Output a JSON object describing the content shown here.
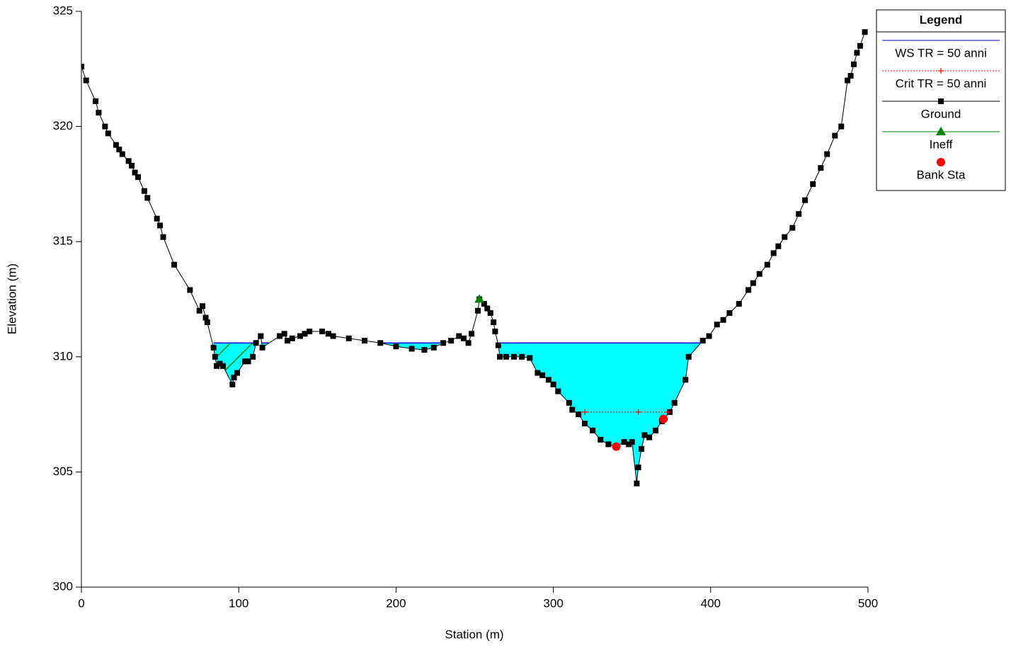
{
  "chart_data": {
    "type": "cross-section",
    "x_label": "Station (m)",
    "y_label": "Elevation (m)",
    "xlim": [
      0,
      500
    ],
    "xticks": [
      0,
      100,
      200,
      300,
      400,
      500
    ],
    "ylim": [
      300,
      325
    ],
    "yticks": [
      300,
      305,
      310,
      315,
      320,
      325
    ],
    "legend_title": "Legend",
    "legend_position": "top-right",
    "series": [
      {
        "name": "WS TR = 50 anni",
        "color": "#0000ff",
        "kind": "water",
        "fill": "#00ffff",
        "x": [
          84,
          396
        ],
        "values": [
          310.6,
          310.6
        ]
      },
      {
        "name": "Crit TR = 50 anni",
        "color": "#ff0000",
        "kind": "crit",
        "x": [
          320,
          354,
          373
        ],
        "values": [
          307.6,
          307.6,
          307.6
        ]
      },
      {
        "name": "Ground",
        "color": "#000000",
        "kind": "ground",
        "x": [
          0,
          3,
          9,
          11,
          15,
          17,
          22,
          24,
          26,
          30,
          32,
          34,
          36,
          40,
          42,
          48,
          50,
          52,
          59,
          69,
          75,
          77,
          79,
          80,
          84,
          85,
          86,
          88,
          90,
          96,
          97,
          99,
          104,
          106,
          109,
          111,
          114,
          115,
          126,
          129,
          131,
          134,
          139,
          142,
          145,
          153,
          157,
          160,
          170,
          180,
          190,
          200,
          210,
          218,
          224,
          230,
          235,
          240,
          243,
          246,
          248,
          252,
          253,
          256,
          258,
          260,
          262,
          263,
          265,
          266,
          270,
          275,
          280,
          285,
          290,
          293,
          297,
          300,
          303,
          310,
          312,
          316,
          320,
          325,
          330,
          335,
          340,
          345,
          348,
          350,
          353,
          354,
          356,
          358,
          361,
          365,
          369,
          374,
          377,
          384,
          386,
          395,
          399,
          404,
          408,
          412,
          418,
          424,
          427,
          431,
          436,
          440,
          443,
          447,
          452,
          456,
          460,
          465,
          470,
          474,
          479,
          483,
          487,
          489,
          491,
          493,
          495,
          498
        ],
        "values": [
          322.6,
          322.0,
          321.1,
          320.6,
          320.0,
          319.7,
          319.2,
          319.0,
          318.8,
          318.5,
          318.3,
          318.0,
          317.8,
          317.2,
          316.9,
          316.0,
          315.7,
          315.2,
          314.0,
          312.9,
          312.0,
          312.2,
          311.7,
          311.5,
          310.4,
          310.0,
          309.6,
          309.7,
          309.6,
          308.8,
          309.1,
          309.3,
          309.8,
          309.8,
          310.0,
          310.6,
          310.9,
          310.4,
          310.9,
          311.0,
          310.7,
          310.8,
          310.9,
          311.0,
          311.1,
          311.1,
          311.0,
          310.9,
          310.8,
          310.7,
          310.6,
          310.45,
          310.35,
          310.3,
          310.4,
          310.6,
          310.7,
          310.9,
          310.8,
          310.6,
          311.0,
          312.0,
          312.5,
          312.3,
          312.1,
          311.9,
          311.5,
          311.1,
          310.5,
          310.0,
          310.0,
          310.0,
          310.0,
          309.95,
          309.3,
          309.2,
          309.0,
          308.8,
          308.5,
          308.0,
          307.7,
          307.5,
          307.1,
          306.8,
          306.4,
          306.2,
          306.1,
          306.3,
          306.2,
          306.3,
          304.5,
          305.2,
          306.0,
          306.6,
          306.5,
          306.8,
          307.2,
          307.6,
          308.0,
          309.0,
          310.0,
          310.7,
          310.9,
          311.4,
          311.6,
          311.9,
          312.3,
          312.9,
          313.2,
          313.6,
          314.0,
          314.5,
          314.8,
          315.2,
          315.6,
          316.2,
          316.8,
          317.5,
          318.2,
          318.8,
          319.6,
          320.0,
          322.0,
          322.2,
          322.7,
          323.2,
          323.5,
          324.1
        ]
      },
      {
        "name": "Ineff",
        "color": "#008000",
        "kind": "ineff",
        "x": [
          253
        ],
        "values": [
          312.5
        ]
      },
      {
        "name": "Bank Sta",
        "color": "#ff0000",
        "kind": "bank",
        "x": [
          340,
          370
        ],
        "values": [
          306.1,
          307.3
        ]
      }
    ]
  }
}
